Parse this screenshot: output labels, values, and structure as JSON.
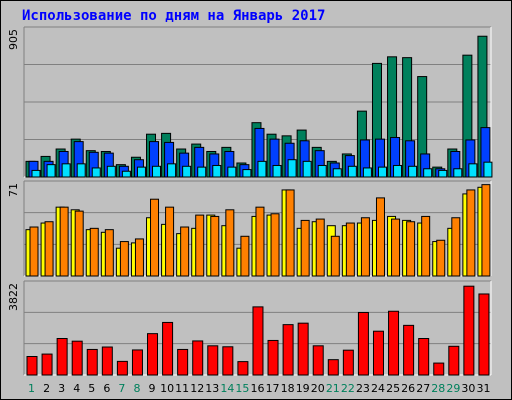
{
  "title": "Использование по дням на Январь 2017",
  "colors": {
    "hits": "#00805c",
    "files": "#0040ff",
    "pages": "#00e0ff",
    "visits": "#ffff00",
    "sites": "#ff8000",
    "kbytes": "#ff0000",
    "weekday_label": "#000000",
    "weekend_label": "#00805c"
  },
  "chart_data": [
    {
      "type": "bar",
      "name": "top",
      "ymax_label": "905",
      "ylim": [
        0,
        905
      ],
      "categories": [
        "1",
        "2",
        "3",
        "4",
        "5",
        "6",
        "7",
        "8",
        "9",
        "10",
        "11",
        "12",
        "13",
        "14",
        "15",
        "16",
        "17",
        "18",
        "19",
        "20",
        "21",
        "22",
        "23",
        "24",
        "25",
        "26",
        "27",
        "28",
        "29",
        "30",
        "31"
      ],
      "weekend": [
        1,
        7,
        8,
        14,
        15,
        21,
        22,
        28,
        29
      ],
      "series": [
        {
          "key": "hits",
          "values": [
            95,
            125,
            170,
            230,
            160,
            155,
            75,
            120,
            260,
            265,
            170,
            200,
            155,
            180,
            85,
            330,
            260,
            250,
            285,
            180,
            95,
            140,
            400,
            690,
            730,
            725,
            610,
            60,
            170,
            740,
            855
          ]
        },
        {
          "key": "files",
          "values": [
            95,
            95,
            155,
            215,
            150,
            145,
            65,
            105,
            215,
            210,
            145,
            180,
            140,
            155,
            75,
            295,
            230,
            205,
            220,
            160,
            85,
            130,
            225,
            230,
            240,
            220,
            140,
            50,
            155,
            225,
            300
          ]
        },
        {
          "key": "pages",
          "values": [
            40,
            75,
            80,
            80,
            55,
            65,
            35,
            60,
            65,
            80,
            65,
            60,
            70,
            60,
            45,
            95,
            70,
            105,
            95,
            70,
            50,
            65,
            55,
            60,
            70,
            65,
            50,
            40,
            50,
            80,
            90
          ]
        }
      ]
    },
    {
      "type": "bar",
      "name": "middle",
      "ymax_label": "71",
      "ylim": [
        0,
        71
      ],
      "categories": [
        "1",
        "2",
        "3",
        "4",
        "5",
        "6",
        "7",
        "8",
        "9",
        "10",
        "11",
        "12",
        "13",
        "14",
        "15",
        "16",
        "17",
        "18",
        "19",
        "20",
        "21",
        "22",
        "23",
        "24",
        "25",
        "26",
        "27",
        "28",
        "29",
        "30",
        "31"
      ],
      "series": [
        {
          "key": "visits",
          "values": [
            35,
            40,
            52,
            50,
            35,
            33,
            21,
            25,
            44,
            39,
            32,
            36,
            46,
            38,
            21,
            45,
            46,
            65,
            36,
            41,
            38,
            38,
            40,
            42,
            45,
            42,
            40,
            26,
            36,
            62,
            67
          ]
        },
        {
          "key": "sites",
          "values": [
            37,
            41,
            52,
            49,
            36,
            35,
            26,
            28,
            58,
            52,
            37,
            46,
            45,
            50,
            30,
            52,
            47,
            65,
            42,
            43,
            30,
            40,
            44,
            59,
            43,
            41,
            45,
            27,
            44,
            65,
            69
          ]
        }
      ]
    },
    {
      "type": "bar",
      "name": "bottom",
      "ymax_label": "3822",
      "ylim": [
        0,
        3822
      ],
      "categories": [
        "1",
        "2",
        "3",
        "4",
        "5",
        "6",
        "7",
        "8",
        "9",
        "10",
        "11",
        "12",
        "13",
        "14",
        "15",
        "16",
        "17",
        "18",
        "19",
        "20",
        "21",
        "22",
        "23",
        "24",
        "25",
        "26",
        "27",
        "28",
        "29",
        "30",
        "31"
      ],
      "series": [
        {
          "key": "kbytes",
          "values": [
            760,
            860,
            1500,
            1390,
            1050,
            1150,
            560,
            1030,
            1700,
            2160,
            1050,
            1400,
            1200,
            1160,
            550,
            2800,
            1420,
            2070,
            2130,
            1200,
            630,
            1020,
            2570,
            1800,
            2620,
            2040,
            1500,
            490,
            1180,
            3650,
            3330
          ]
        }
      ]
    }
  ]
}
